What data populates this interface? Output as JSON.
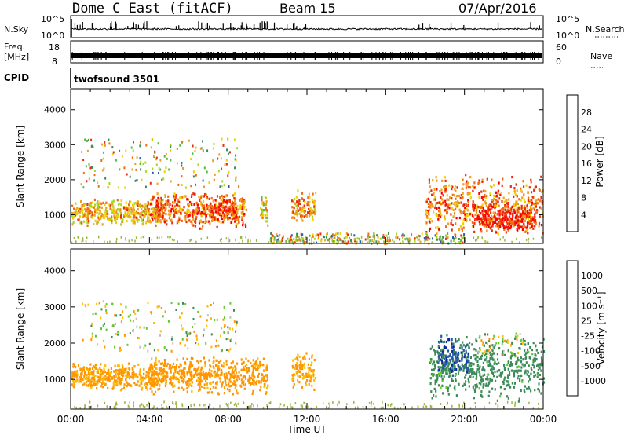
{
  "header": {
    "title": "Dome C East (fitACF)",
    "beam": "Beam 15",
    "date": "07/Apr/2016"
  },
  "strips": {
    "nsky_label": "N.Sky",
    "nsky_ticks": [
      "10^5",
      "10^0"
    ],
    "nsearch_label": "N.Search",
    "nsearch_ticks": [
      "10^5",
      "10^0"
    ],
    "freq_label": "Freq.",
    "freq_unit": "[MHz]",
    "freq_ticks": [
      "18",
      "8"
    ],
    "nave_label": "Nave",
    "nave_ticks": [
      "60",
      "0"
    ],
    "cpid_label": "CPID",
    "cpid_value": "twofsound 3501"
  },
  "colors": {
    "power": [
      "#0000ff",
      "#2a5cb0",
      "#3a8a5a",
      "#58b848",
      "#a8d820",
      "#f0d000",
      "#f0a020",
      "#f07010",
      "#e83010",
      "#ff0000"
    ],
    "velocity": [
      "#ff0000",
      "#ff5a00",
      "#ff9600",
      "#ffbe00",
      "#c0c0c0",
      "#62c834",
      "#3c8c5a",
      "#2a5aa8",
      "#0a28a0"
    ],
    "ground": "#9ab840",
    "lines": "#000000"
  },
  "chart_data": [
    {
      "type": "heatmap",
      "name": "power",
      "xlabel": "",
      "ylabel": "Slant Range [km]",
      "x_ticks": [
        "00:00",
        "04:00",
        "08:00",
        "12:00",
        "16:00",
        "20:00",
        "00:00"
      ],
      "xlim": [
        0,
        24
      ],
      "y_ticks": [
        1000,
        2000,
        3000,
        4000
      ],
      "ylim": [
        180,
        4600
      ],
      "colorbar_label": "Power [dB]",
      "colorbar_ticks": [
        4,
        8,
        12,
        16,
        20,
        24,
        28
      ],
      "colorbar_range": [
        0,
        32
      ],
      "blobs": [
        {
          "t0": 0.0,
          "t1": 4.7,
          "r0": 700,
          "r1": 1500,
          "p": 20
        },
        {
          "t0": 4.0,
          "t1": 8.9,
          "r0": 600,
          "r1": 1700,
          "p": 24
        },
        {
          "t0": 7.0,
          "t1": 8.4,
          "r0": 800,
          "r1": 1500,
          "p": 26
        },
        {
          "t0": 9.6,
          "t1": 10.0,
          "r0": 700,
          "r1": 1600,
          "p": 18
        },
        {
          "t0": 11.2,
          "t1": 12.4,
          "r0": 700,
          "r1": 1800,
          "p": 22
        },
        {
          "t0": 18.0,
          "t1": 24.0,
          "r0": 400,
          "r1": 2200,
          "p": 24
        },
        {
          "t0": 20.4,
          "t1": 23.6,
          "r0": 500,
          "r1": 1300,
          "p": 28
        }
      ],
      "sparse": [
        {
          "t0": 0.5,
          "t1": 8.5,
          "r0": 1800,
          "r1": 3200
        },
        {
          "t0": 10.0,
          "t1": 20.0,
          "r0": 200,
          "r1": 500
        }
      ]
    },
    {
      "type": "heatmap",
      "name": "velocity",
      "xlabel": "Time UT",
      "ylabel": "Slant Range [km]",
      "x_ticks": [
        "00:00",
        "04:00",
        "08:00",
        "12:00",
        "16:00",
        "20:00",
        "00:00"
      ],
      "xlim": [
        0,
        24
      ],
      "y_ticks": [
        1000,
        2000,
        3000,
        4000
      ],
      "ylim": [
        180,
        4600
      ],
      "colorbar_label": "Velocity [m s⁻¹]",
      "colorbar_ticks": [
        "1000",
        "500",
        "100",
        "25",
        "-25",
        "-100",
        "-500",
        "-1000"
      ],
      "blobs": [
        {
          "t0": 0.0,
          "t1": 4.7,
          "r0": 700,
          "r1": 1500,
          "v": -150
        },
        {
          "t0": 4.0,
          "t1": 10.0,
          "r0": 600,
          "r1": 1700,
          "v": -200
        },
        {
          "t0": 11.2,
          "t1": 12.4,
          "r0": 700,
          "r1": 1800,
          "v": -120
        },
        {
          "t0": 18.2,
          "t1": 24.0,
          "r0": 400,
          "r1": 2300,
          "v": 200
        },
        {
          "t0": 18.6,
          "t1": 20.2,
          "r0": 1100,
          "r1": 2300,
          "v": 800
        }
      ],
      "sparse": [
        {
          "t0": 0.5,
          "t1": 8.5,
          "r0": 1800,
          "r1": 3200
        },
        {
          "t0": 20.5,
          "t1": 23.0,
          "r0": 1700,
          "r1": 2300
        }
      ]
    }
  ]
}
